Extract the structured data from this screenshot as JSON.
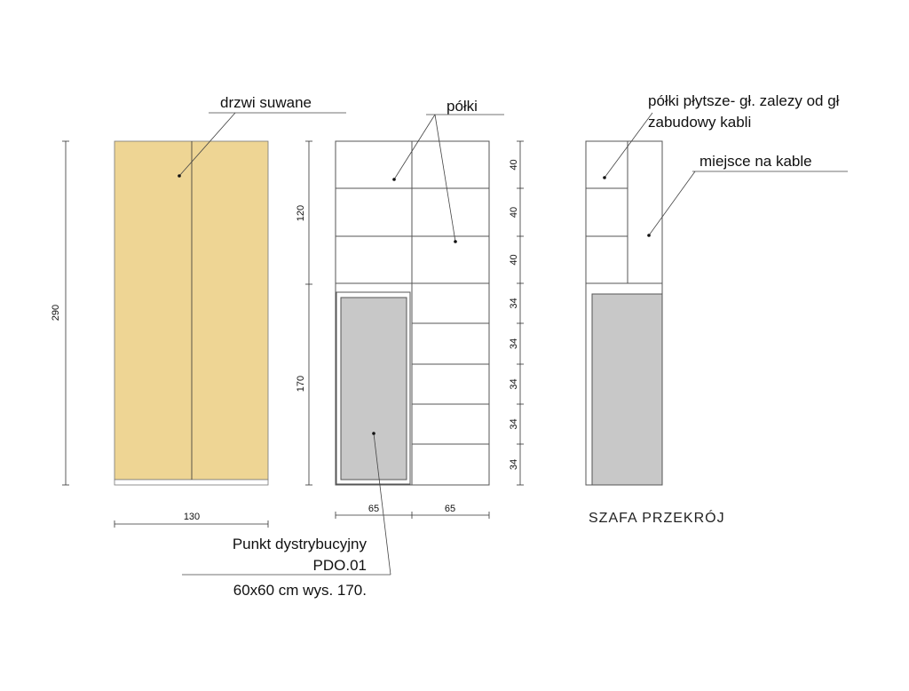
{
  "title": "SZAFA PRZEKRÓJ",
  "annotations": {
    "sliding_doors": "drzwi suwane",
    "shelves": "półki",
    "shallow_shelves": [
      "półki płytsze- gł. zalezy od gł",
      "zabudowy  kabli"
    ],
    "cable_space": "miejsce na kable",
    "distribution_point": [
      "Punkt  dystrybucyjny",
      "PDO.01",
      "60x60 cm wys. 170."
    ]
  },
  "dimensions": {
    "front_height": 290,
    "front_width": 130,
    "upper_height": 120,
    "lower_height": 170,
    "column_widths": [
      65,
      65
    ],
    "shelf_heights": [
      40,
      40,
      40,
      34,
      34,
      34,
      34,
      34
    ]
  }
}
